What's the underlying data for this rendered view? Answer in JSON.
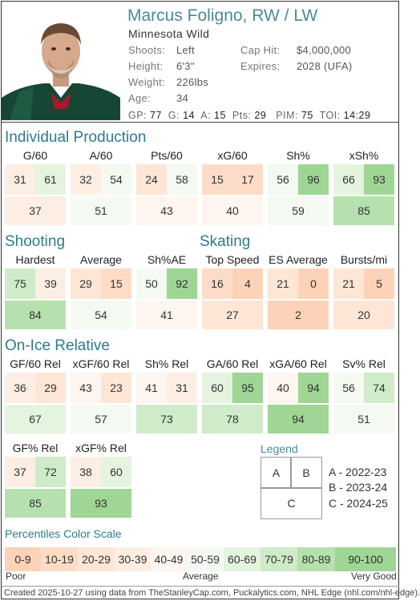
{
  "player": {
    "name": "Marcus Foligno, RW / LW",
    "team": "Minnesota Wild",
    "shoots_label": "Shoots:",
    "shoots": "Left",
    "height_label": "Height:",
    "height": "6'3\"",
    "weight_label": "Weight:",
    "weight": "226lbs",
    "age_label": "Age:",
    "age": "34",
    "cap_label": "Cap Hit:",
    "cap": "$4,000,000",
    "expires_label": "Expires:",
    "expires": "2028 (UFA)"
  },
  "statline": {
    "gp_label": "GP:",
    "gp": "77",
    "g_label": "G:",
    "g": "14",
    "a_label": "A:",
    "a": "15",
    "pts_label": "Pts:",
    "pts": "29",
    "pim_label": "PIM:",
    "pim": "75",
    "toi_label": "TOI:",
    "toi": "14:29"
  },
  "sections": {
    "individual": "Individual Production",
    "shooting": "Shooting",
    "skating": "Skating",
    "onice": "On-Ice Relative"
  },
  "individual": [
    {
      "label": "G/60",
      "a": "31",
      "b": "61",
      "c": "37"
    },
    {
      "label": "A/60",
      "a": "32",
      "b": "54",
      "c": "51"
    },
    {
      "label": "Pts/60",
      "a": "24",
      "b": "58",
      "c": "43"
    },
    {
      "label": "xG/60",
      "a": "15",
      "b": "17",
      "c": "40"
    },
    {
      "label": "Sh%",
      "a": "56",
      "b": "96",
      "c": "59"
    },
    {
      "label": "xSh%",
      "a": "66",
      "b": "93",
      "c": "85"
    }
  ],
  "shooting": [
    {
      "label": "Hardest",
      "a": "75",
      "b": "39",
      "c": "84"
    },
    {
      "label": "Average",
      "a": "29",
      "b": "15",
      "c": "54"
    },
    {
      "label": "Sh%AE",
      "a": "50",
      "b": "92",
      "c": "41"
    }
  ],
  "skating": [
    {
      "label": "Top Speed",
      "a": "16",
      "b": "4",
      "c": "27"
    },
    {
      "label": "ES Average",
      "a": "21",
      "b": "0",
      "c": "2"
    },
    {
      "label": "Bursts/mi",
      "a": "21",
      "b": "5",
      "c": "20"
    }
  ],
  "onice": [
    {
      "label": "GF/60 Rel",
      "a": "36",
      "b": "29",
      "c": "67"
    },
    {
      "label": "xGF/60 Rel",
      "a": "43",
      "b": "23",
      "c": "57"
    },
    {
      "label": "Sh% Rel",
      "a": "41",
      "b": "31",
      "c": "73"
    },
    {
      "label": "GA/60 Rel",
      "a": "60",
      "b": "95",
      "c": "78"
    },
    {
      "label": "xGA/60 Rel",
      "a": "40",
      "b": "94",
      "c": "94"
    },
    {
      "label": "Sv% Rel",
      "a": "56",
      "b": "74",
      "c": "51"
    }
  ],
  "onice2": [
    {
      "label": "GF% Rel",
      "a": "37",
      "b": "72",
      "c": "85"
    },
    {
      "label": "xGF% Rel",
      "a": "38",
      "b": "60",
      "c": "93"
    }
  ],
  "legend": {
    "title": "Legend",
    "a": "A",
    "b": "B",
    "c": "C",
    "a_text": "A - 2022-23",
    "b_text": "B - 2023-24",
    "c_text": "C - 2024-25"
  },
  "scale": {
    "title": "Percentiles Color Scale",
    "bins": [
      {
        "label": "0-9",
        "color": "#fcd3b8"
      },
      {
        "label": "10-19",
        "color": "#fcdcc6"
      },
      {
        "label": "20-29",
        "color": "#fde6d6"
      },
      {
        "label": "30-39",
        "color": "#fdeee4"
      },
      {
        "label": "40-49",
        "color": "#fdf5ef"
      },
      {
        "label": "50-59",
        "color": "#f4faf2"
      },
      {
        "label": "60-69",
        "color": "#e4f4df"
      },
      {
        "label": "70-79",
        "color": "#cfebc9"
      },
      {
        "label": "80-89",
        "color": "#b6e0ae"
      },
      {
        "label": "90-100",
        "color": "#9fd595"
      }
    ],
    "poor": "Poor",
    "average": "Average",
    "very_good": "Very Good"
  },
  "footer": "Created 2025-10-27 using data from TheStanleyCap.com, Puckalytics.com, NHL Edge (nhl.com/nhl-edge)."
}
